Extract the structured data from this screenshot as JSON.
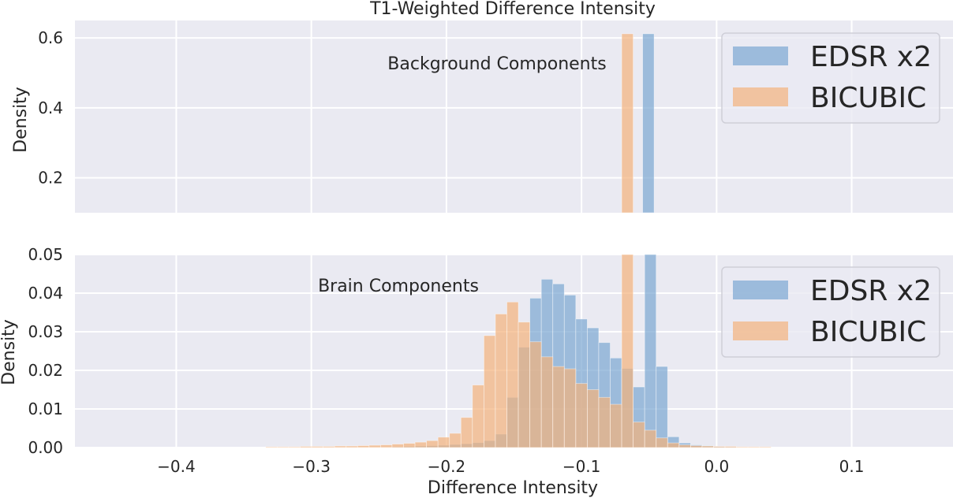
{
  "figure": {
    "title": "T1-Weighted Difference Intensity",
    "xlabel": "Difference Intensity"
  },
  "colors": {
    "background": "#EAEAF2",
    "grid": "#FFFFFF",
    "edsr": "#7BA7D2",
    "bicubic": "#F4B27C",
    "overlap": "#C0A082",
    "text": "#262626"
  },
  "chart_data": [
    {
      "type": "bar",
      "panel": "top",
      "annotation": "Background Components",
      "ylabel": "Density",
      "xlim": [
        -0.475,
        0.175
      ],
      "ylim": [
        0.1,
        0.65
      ],
      "xticks": [
        -0.4,
        -0.3,
        -0.2,
        -0.1,
        0.0,
        0.1
      ],
      "yticks": [
        0.2,
        0.4,
        0.6
      ],
      "grid": true,
      "legend_position": "top-right",
      "bin_width": 0.0085,
      "series": [
        {
          "name": "EDSR x2",
          "bins": [
            [
              -0.0505,
              0.612
            ]
          ]
        },
        {
          "name": "BICUBIC",
          "bins": [
            [
              -0.066,
              0.612
            ]
          ]
        }
      ]
    },
    {
      "type": "bar",
      "panel": "bottom",
      "annotation": "Brain Components",
      "ylabel": "Density",
      "xlabel": "Difference Intensity",
      "xlim": [
        -0.475,
        0.175
      ],
      "ylim": [
        0.0,
        0.05
      ],
      "xticks": [
        -0.4,
        -0.3,
        -0.2,
        -0.1,
        0.0,
        0.1
      ],
      "yticks": [
        0.0,
        0.01,
        0.02,
        0.03,
        0.04,
        0.05
      ],
      "grid": true,
      "legend_position": "top-right",
      "bin_width": 0.0085,
      "series": [
        {
          "name": "EDSR x2",
          "bins": [
            [
              -0.236,
              0.0002
            ],
            [
              -0.2275,
              0.0003
            ],
            [
              -0.219,
              0.0004
            ],
            [
              -0.2105,
              0.0005
            ],
            [
              -0.202,
              0.0006
            ],
            [
              -0.1935,
              0.0008
            ],
            [
              -0.185,
              0.001
            ],
            [
              -0.1765,
              0.0013
            ],
            [
              -0.168,
              0.0018
            ],
            [
              -0.1595,
              0.0035
            ],
            [
              -0.151,
              0.013
            ],
            [
              -0.1425,
              0.026
            ],
            [
              -0.134,
              0.0387
            ],
            [
              -0.1255,
              0.0436
            ],
            [
              -0.117,
              0.0424
            ],
            [
              -0.1085,
              0.0395
            ],
            [
              -0.1,
              0.0333
            ],
            [
              -0.0915,
              0.031
            ],
            [
              -0.083,
              0.0272
            ],
            [
              -0.0745,
              0.0232
            ],
            [
              -0.066,
              0.0205
            ],
            [
              -0.0575,
              0.0157
            ],
            [
              -0.049,
              0.05
            ],
            [
              -0.0405,
              0.021
            ],
            [
              -0.032,
              0.0028
            ],
            [
              -0.0235,
              0.0012
            ],
            [
              -0.015,
              0.0007
            ],
            [
              -0.0065,
              0.0005
            ],
            [
              0.002,
              0.0003
            ],
            [
              0.0105,
              0.0002
            ]
          ]
        },
        {
          "name": "BICUBIC",
          "bins": [
            [
              -0.3295,
              0.0002
            ],
            [
              -0.321,
              0.0002
            ],
            [
              -0.3125,
              0.0002
            ],
            [
              -0.304,
              0.0003
            ],
            [
              -0.2955,
              0.0003
            ],
            [
              -0.287,
              0.0003
            ],
            [
              -0.2785,
              0.0004
            ],
            [
              -0.27,
              0.0004
            ],
            [
              -0.2615,
              0.0005
            ],
            [
              -0.253,
              0.0006
            ],
            [
              -0.2445,
              0.0007
            ],
            [
              -0.236,
              0.0009
            ],
            [
              -0.2275,
              0.0011
            ],
            [
              -0.219,
              0.0014
            ],
            [
              -0.2105,
              0.0018
            ],
            [
              -0.202,
              0.0027
            ],
            [
              -0.1935,
              0.0037
            ],
            [
              -0.185,
              0.0078
            ],
            [
              -0.1765,
              0.0162
            ],
            [
              -0.168,
              0.029
            ],
            [
              -0.1595,
              0.0346
            ],
            [
              -0.151,
              0.0377
            ],
            [
              -0.1425,
              0.0325
            ],
            [
              -0.134,
              0.0274
            ],
            [
              -0.1255,
              0.0235
            ],
            [
              -0.117,
              0.021
            ],
            [
              -0.1085,
              0.0204
            ],
            [
              -0.1,
              0.0166
            ],
            [
              -0.0915,
              0.015
            ],
            [
              -0.083,
              0.013
            ],
            [
              -0.0745,
              0.0112
            ],
            [
              -0.066,
              0.05
            ],
            [
              -0.0575,
              0.0066
            ],
            [
              -0.049,
              0.0045
            ],
            [
              -0.0405,
              0.0025
            ],
            [
              -0.032,
              0.0012
            ],
            [
              -0.0235,
              0.0007
            ],
            [
              -0.015,
              0.0005
            ],
            [
              -0.0065,
              0.0004
            ],
            [
              0.002,
              0.0003
            ],
            [
              0.0105,
              0.0003
            ],
            [
              0.019,
              0.0002
            ],
            [
              0.0275,
              0.0002
            ],
            [
              0.036,
              0.0002
            ]
          ]
        }
      ]
    }
  ]
}
